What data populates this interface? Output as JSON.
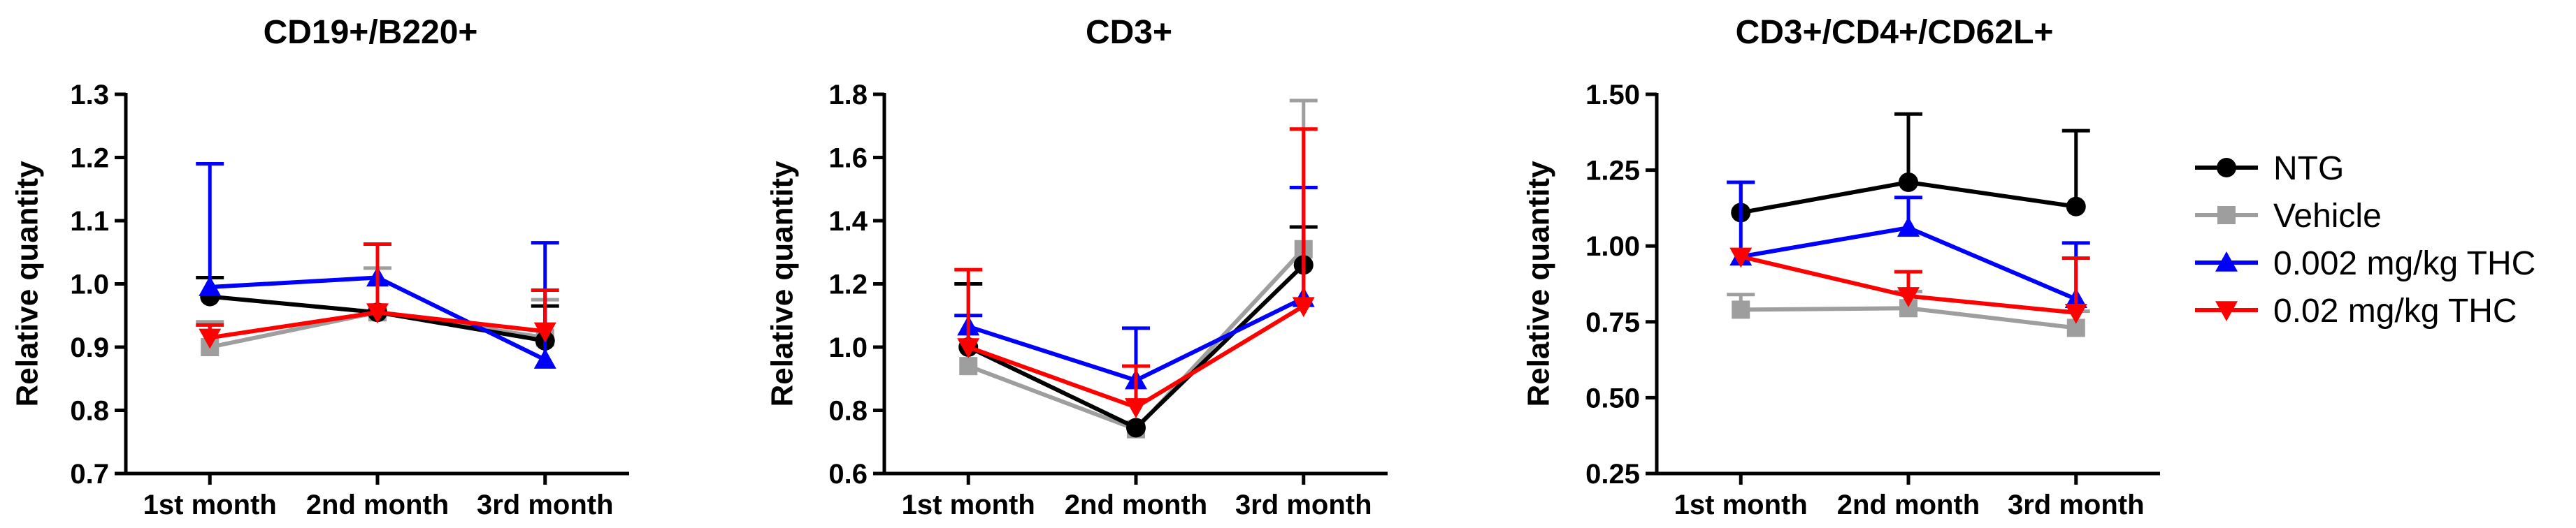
{
  "figure": {
    "ylabel": "Relative quantity",
    "categories": [
      "1st month",
      "2nd month",
      "3rd month"
    ],
    "series_styles": [
      {
        "name": "NTG",
        "color": "#000000",
        "marker": "circle"
      },
      {
        "name": "Vehicle",
        "color": "#9e9e9e",
        "marker": "square"
      },
      {
        "name": "0.002 mg/kg THC",
        "color": "#0000ff",
        "marker": "triangle-up"
      },
      {
        "name": "0.02 mg/kg THC",
        "color": "#ff0000",
        "marker": "triangle-down"
      }
    ]
  },
  "chart_data": [
    {
      "type": "line",
      "title": "CD19+/B220+",
      "xlabel": "",
      "ylabel": "Relative quantity",
      "categories": [
        "1st month",
        "2nd month",
        "3rd month"
      ],
      "ylim": [
        0.7,
        1.3
      ],
      "yticks": [
        0.7,
        0.8,
        0.9,
        1.0,
        1.1,
        1.2,
        1.3
      ],
      "ytick_labels": [
        "0.7",
        "0.8",
        "0.9",
        "1.0",
        "1.1",
        "1.2",
        "1.3"
      ],
      "series": [
        {
          "name": "NTG",
          "values": [
            0.98,
            0.955,
            0.91
          ],
          "errors": [
            0.03,
            0.0,
            0.055
          ]
        },
        {
          "name": "Vehicle",
          "values": [
            0.9,
            0.955,
            0.915
          ],
          "errors": [
            0.04,
            0.07,
            0.06
          ]
        },
        {
          "name": "0.002 mg/kg THC",
          "values": [
            0.995,
            1.01,
            0.88
          ],
          "errors": [
            0.195,
            0.0,
            0.185
          ]
        },
        {
          "name": "0.02 mg/kg THC",
          "values": [
            0.915,
            0.955,
            0.925
          ],
          "errors": [
            0.02,
            0.108,
            0.065
          ]
        }
      ]
    },
    {
      "type": "line",
      "title": "CD3+",
      "xlabel": "",
      "ylabel": "Relative quantity",
      "categories": [
        "1st month",
        "2nd month",
        "3rd month"
      ],
      "ylim": [
        0.6,
        1.8
      ],
      "yticks": [
        0.6,
        0.8,
        1.0,
        1.2,
        1.4,
        1.6,
        1.8
      ],
      "ytick_labels": [
        "0.6",
        "0.8",
        "1.0",
        "1.2",
        "1.4",
        "1.6",
        "1.8"
      ],
      "series": [
        {
          "name": "NTG",
          "values": [
            1.0,
            0.745,
            1.26
          ],
          "errors": [
            0.2,
            0.0,
            0.12
          ]
        },
        {
          "name": "Vehicle",
          "values": [
            0.94,
            0.74,
            1.31
          ],
          "errors": [
            0.0,
            0.0,
            0.47
          ]
        },
        {
          "name": "0.002 mg/kg THC",
          "values": [
            1.065,
            0.895,
            1.155
          ],
          "errors": [
            0.035,
            0.165,
            0.35
          ]
        },
        {
          "name": "0.02 mg/kg THC",
          "values": [
            1.0,
            0.81,
            1.13
          ],
          "errors": [
            0.245,
            0.13,
            0.56
          ]
        }
      ]
    },
    {
      "type": "line",
      "title": "CD3+/CD4+/CD62L+",
      "xlabel": "",
      "ylabel": "Relative quantity",
      "categories": [
        "1st month",
        "2nd month",
        "3rd month"
      ],
      "ylim": [
        0.25,
        1.5
      ],
      "yticks": [
        0.25,
        0.5,
        0.75,
        1.0,
        1.25,
        1.5
      ],
      "ytick_labels": [
        "0.25",
        "0.50",
        "0.75",
        "1.00",
        "1.25",
        "1.50"
      ],
      "legend": "right",
      "series": [
        {
          "name": "NTG",
          "values": [
            1.11,
            1.21,
            1.13
          ],
          "errors": [
            0.1,
            0.225,
            0.25
          ]
        },
        {
          "name": "Vehicle",
          "values": [
            0.79,
            0.795,
            0.73
          ],
          "errors": [
            0.05,
            0.055,
            0.055
          ]
        },
        {
          "name": "0.002 mg/kg THC",
          "values": [
            0.965,
            1.06,
            0.825
          ],
          "errors": [
            0.245,
            0.1,
            0.185
          ]
        },
        {
          "name": "0.02 mg/kg THC",
          "values": [
            0.965,
            0.835,
            0.78
          ],
          "errors": [
            0.0,
            0.08,
            0.18
          ]
        }
      ]
    }
  ]
}
